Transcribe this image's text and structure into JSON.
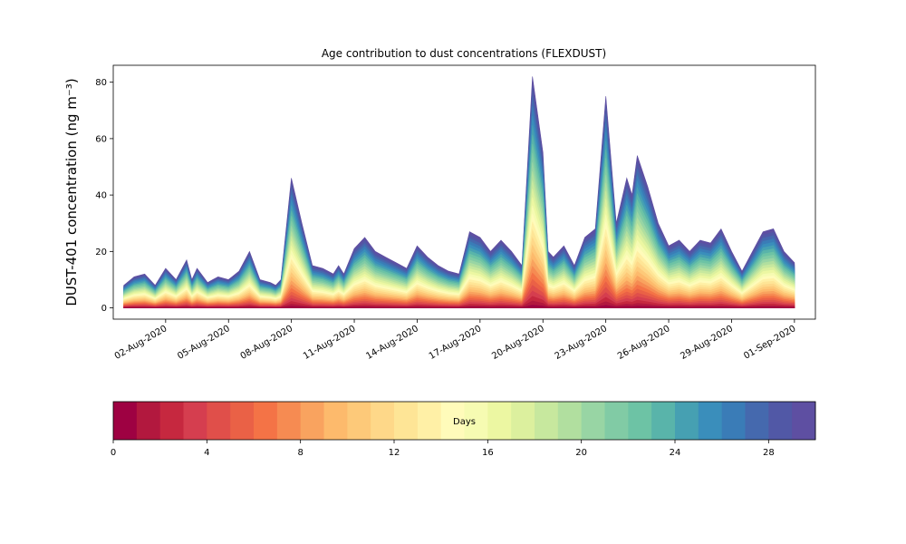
{
  "chart_data": {
    "type": "area",
    "title": "Age contribution to dust concentrations (FLEXDUST)",
    "ylabel": "DUST-401 concentration (ng m⁻³)",
    "xlabel": "",
    "ylim": [
      -4,
      86
    ],
    "yticks": [
      0,
      20,
      40,
      60,
      80
    ],
    "xlim": [
      "2020-07-30T12:00",
      "2020-09-02T00:00"
    ],
    "xticks": [
      "2020-08-02",
      "2020-08-05",
      "2020-08-08",
      "2020-08-11",
      "2020-08-14",
      "2020-08-17",
      "2020-08-20",
      "2020-08-23",
      "2020-08-26",
      "2020-08-29",
      "2020-09-01"
    ],
    "xtick_labels": [
      "02-Aug-2020",
      "05-Aug-2020",
      "08-Aug-2020",
      "11-Aug-2020",
      "14-Aug-2020",
      "17-Aug-2020",
      "20-Aug-2020",
      "23-Aug-2020",
      "26-Aug-2020",
      "29-Aug-2020",
      "01-Sep-2020"
    ],
    "grid": false,
    "series_description": "Stacked contributions by dust age in days (0 to 30); top curve is the total concentration",
    "total": {
      "x": [
        "2020-07-31T00:00",
        "2020-07-31T12:00",
        "2020-08-01T00:00",
        "2020-08-01T12:00",
        "2020-08-02T00:00",
        "2020-08-02T12:00",
        "2020-08-03T00:00",
        "2020-08-03T06:00",
        "2020-08-03T12:00",
        "2020-08-04T00:00",
        "2020-08-04T06:00",
        "2020-08-04T12:00",
        "2020-08-05T00:00",
        "2020-08-05T12:00",
        "2020-08-06T00:00",
        "2020-08-06T12:00",
        "2020-08-07T00:00",
        "2020-08-07T06:00",
        "2020-08-07T12:00",
        "2020-08-08T00:00",
        "2020-08-08T12:00",
        "2020-08-09T00:00",
        "2020-08-09T12:00",
        "2020-08-10T00:00",
        "2020-08-10T06:00",
        "2020-08-10T12:00",
        "2020-08-11T00:00",
        "2020-08-11T12:00",
        "2020-08-12T00:00",
        "2020-08-12T12:00",
        "2020-08-13T00:00",
        "2020-08-13T12:00",
        "2020-08-14T00:00",
        "2020-08-14T12:00",
        "2020-08-15T00:00",
        "2020-08-15T12:00",
        "2020-08-16T00:00",
        "2020-08-16T12:00",
        "2020-08-17T00:00",
        "2020-08-17T12:00",
        "2020-08-18T00:00",
        "2020-08-18T12:00",
        "2020-08-19T00:00",
        "2020-08-19T12:00",
        "2020-08-20T00:00",
        "2020-08-20T06:00",
        "2020-08-20T12:00",
        "2020-08-21T00:00",
        "2020-08-21T12:00",
        "2020-08-22T00:00",
        "2020-08-22T12:00",
        "2020-08-23T00:00",
        "2020-08-23T12:00",
        "2020-08-24T00:00",
        "2020-08-24T06:00",
        "2020-08-24T12:00",
        "2020-08-25T00:00",
        "2020-08-25T12:00",
        "2020-08-26T00:00",
        "2020-08-26T12:00",
        "2020-08-27T00:00",
        "2020-08-27T12:00",
        "2020-08-28T00:00",
        "2020-08-28T12:00",
        "2020-08-29T00:00",
        "2020-08-29T12:00",
        "2020-08-30T00:00",
        "2020-08-30T12:00",
        "2020-08-31T00:00",
        "2020-08-31T12:00",
        "2020-09-01T00:00"
      ],
      "values": [
        8,
        11,
        12,
        8,
        14,
        10,
        17,
        10,
        14,
        9,
        10,
        11,
        10,
        13,
        20,
        10,
        9,
        8,
        10,
        46,
        30,
        15,
        14,
        12,
        15,
        12,
        21,
        25,
        20,
        18,
        16,
        14,
        22,
        18,
        15,
        13,
        12,
        27,
        25,
        20,
        24,
        20,
        15,
        82,
        55,
        20,
        18,
        22,
        15,
        25,
        28,
        75,
        30,
        46,
        40,
        54,
        43,
        30,
        22,
        24,
        20,
        24,
        23,
        28,
        20,
        13,
        20,
        27,
        28,
        20,
        16
      ]
    },
    "colorbar": {
      "label": "Days",
      "min": 0,
      "max": 30,
      "step": 1,
      "ticks": [
        0,
        4,
        8,
        12,
        16,
        20,
        24,
        28
      ],
      "colormap": "Spectral",
      "colors": [
        "#9e0142",
        "#b2183e",
        "#c6283f",
        "#d53e4f",
        "#e04f4a",
        "#ea6146",
        "#f47346",
        "#f68b52",
        "#f9a35f",
        "#fdba6c",
        "#fdc979",
        "#fed889",
        "#fee596",
        "#fff0a6",
        "#fffbba",
        "#f6fbb2",
        "#ecf7a2",
        "#dcf09e",
        "#c7e89e",
        "#b1df9f",
        "#98d5a4",
        "#81cba5",
        "#6dc3a5",
        "#59b4aa",
        "#46a0b2",
        "#3a8ebb",
        "#3a7cb7",
        "#4569ae",
        "#5158a6",
        "#5e4fa2"
      ]
    }
  }
}
